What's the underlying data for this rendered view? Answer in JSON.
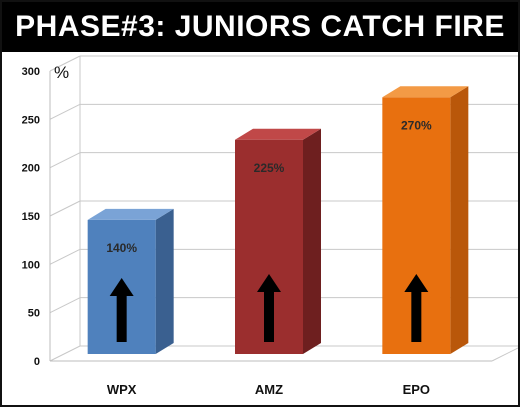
{
  "chart_data": {
    "type": "bar",
    "title": "PHASE#3:  JUNIORS CATCH FIRE",
    "ylabel": "%",
    "xlabel": "",
    "categories": [
      "WPX",
      "AMZ",
      "EPO"
    ],
    "values": [
      140,
      225,
      270
    ],
    "data_labels": [
      "140%",
      "225%",
      "270%"
    ],
    "ylim": [
      0,
      300
    ],
    "yticks": [
      0,
      50,
      100,
      150,
      200,
      250,
      300
    ],
    "grid": true,
    "style": "3d",
    "bar_colors": [
      "#4f81bd",
      "#9b2e2e",
      "#e8700f"
    ],
    "bar_side_colors": [
      "#3a6090",
      "#6e1f1f",
      "#b9570a"
    ],
    "bar_top_colors": [
      "#7aa3d6",
      "#c04848",
      "#f39a45"
    ],
    "arrow_icon": "arrow-up-icon",
    "background_color": "#ffffff",
    "title_bar_color": "#000000",
    "title_text_color": "#ffffff"
  }
}
